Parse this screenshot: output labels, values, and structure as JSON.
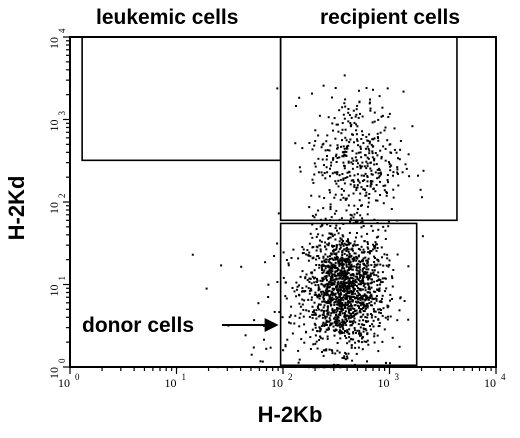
{
  "chart_data": {
    "type": "scatter",
    "title": "",
    "xlabel": "H-2Kb",
    "ylabel": "H-2Kd",
    "x_scale": "log",
    "y_scale": "log",
    "xlim": [
      1,
      10000
    ],
    "ylim": [
      1,
      10000
    ],
    "x_ticks": [
      {
        "value": 1,
        "base": "10",
        "exp": "0"
      },
      {
        "value": 10,
        "base": "10",
        "exp": "1"
      },
      {
        "value": 100,
        "base": "10",
        "exp": "2"
      },
      {
        "value": 1000,
        "base": "10",
        "exp": "3"
      },
      {
        "value": 10000,
        "base": "10",
        "exp": "4"
      }
    ],
    "y_ticks": [
      {
        "value": 1,
        "base": "10",
        "exp": "0"
      },
      {
        "value": 10,
        "base": "10",
        "exp": "1"
      },
      {
        "value": 100,
        "base": "10",
        "exp": "2"
      },
      {
        "value": 1000,
        "base": "10",
        "exp": "3"
      },
      {
        "value": 10000,
        "base": "10",
        "exp": "4"
      }
    ],
    "grid": false,
    "gates": [
      {
        "label": "leukemic cells",
        "x_range": [
          1.3,
          95
        ],
        "y_range": [
          320,
          10000
        ]
      },
      {
        "label": "recipient cells",
        "x_range": [
          95,
          4300
        ],
        "y_range": [
          60,
          10000
        ]
      },
      {
        "label": "donor cells",
        "x_range": [
          95,
          1800
        ],
        "y_range": [
          1.05,
          55
        ],
        "annotation": "arrow"
      }
    ],
    "populations": [
      {
        "name": "donor",
        "center": [
          370,
          9
        ],
        "spread_log": [
          0.19,
          0.35
        ],
        "count": 1500
      },
      {
        "name": "recipient",
        "center": [
          480,
          320
        ],
        "spread_log": [
          0.22,
          0.42
        ],
        "count": 430
      },
      {
        "name": "scattered",
        "center": [
          130,
          4
        ],
        "spread_log": [
          0.4,
          0.5
        ],
        "count": 80
      }
    ]
  }
}
